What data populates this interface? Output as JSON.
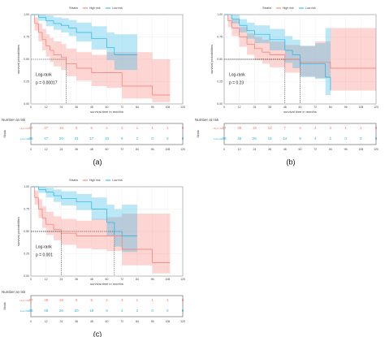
{
  "chart_data": [
    {
      "type": "step",
      "label": "(a)",
      "legend_title": "Strata",
      "ylabel": "survival probabilities",
      "xlabel": "survival time in months",
      "annotations": [
        "Log-rank",
        "p = 0.00017"
      ],
      "risk_title": "Number at risk",
      "risk_ylabel": "Strata",
      "xlim": [
        0,
        120
      ],
      "xticks": [
        0,
        12,
        24,
        36,
        48,
        60,
        72,
        84,
        96,
        108,
        120
      ],
      "ylim": [
        0,
        1
      ],
      "yticks": [
        {
          "value": 0,
          "label": "0.00"
        },
        {
          "value": 0.25,
          "label": "0.25"
        },
        {
          "value": 0.5,
          "label": "0.50"
        },
        {
          "value": 0.75,
          "label": "0.75"
        },
        {
          "value": 1,
          "label": "1.00"
        }
      ],
      "series": [
        {
          "name": "High risk",
          "color": "#f8766d",
          "median": 28,
          "x": [
            0,
            3,
            6,
            9,
            12,
            15,
            18,
            24,
            28,
            36,
            48,
            60,
            72,
            96,
            110
          ],
          "values": [
            1,
            0.9,
            0.8,
            0.72,
            0.65,
            0.6,
            0.55,
            0.52,
            0.45,
            0.4,
            0.35,
            0.35,
            0.2,
            0.1,
            0.1
          ],
          "lower": [
            1,
            0.82,
            0.7,
            0.6,
            0.53,
            0.47,
            0.42,
            0.38,
            0.31,
            0.26,
            0.2,
            0.18,
            0.06,
            0.02,
            0.02
          ],
          "upper": [
            1,
            0.97,
            0.9,
            0.84,
            0.78,
            0.74,
            0.7,
            0.67,
            0.62,
            0.58,
            0.55,
            0.58,
            0.58,
            0.5,
            0.5
          ],
          "at_risk": [
            57,
            37,
            19,
            9,
            6,
            4,
            2,
            1,
            1,
            1,
            0
          ]
        },
        {
          "name": "Low risk",
          "color": "#1fb3e5",
          "x": [
            0,
            6,
            12,
            18,
            24,
            30,
            36,
            48,
            60,
            66,
            84
          ],
          "values": [
            1,
            0.97,
            0.93,
            0.9,
            0.88,
            0.85,
            0.8,
            0.73,
            0.63,
            0.55,
            0.55
          ],
          "lower": [
            1,
            0.93,
            0.87,
            0.83,
            0.8,
            0.76,
            0.7,
            0.61,
            0.49,
            0.38,
            0.38
          ],
          "upper": [
            1,
            1,
            0.99,
            0.97,
            0.96,
            0.94,
            0.91,
            0.87,
            0.8,
            0.78,
            0.78
          ],
          "at_risk": [
            68,
            47,
            26,
            21,
            17,
            10,
            6,
            2,
            0,
            0,
            0
          ]
        }
      ]
    },
    {
      "type": "step",
      "label": "(b)",
      "legend_title": "Strata",
      "ylabel": "survival probabilities",
      "xlabel": "survival time in months",
      "annotations": [
        "Log-rank",
        "p = 0.23"
      ],
      "risk_title": "Number at risk",
      "risk_ylabel": "Strata",
      "xlim": [
        0,
        120
      ],
      "xticks": [
        0,
        12,
        24,
        36,
        48,
        60,
        72,
        84,
        96,
        108,
        120
      ],
      "ylim": [
        0,
        1
      ],
      "yticks": [
        {
          "value": 0,
          "label": "0.00"
        },
        {
          "value": 0.25,
          "label": "0.25"
        },
        {
          "value": 0.5,
          "label": "0.50"
        },
        {
          "value": 0.75,
          "label": "0.75"
        },
        {
          "value": 1,
          "label": "1.00"
        }
      ],
      "series": [
        {
          "name": "High risk",
          "color": "#f8766d",
          "median": 48,
          "x": [
            0,
            3,
            6,
            12,
            18,
            24,
            30,
            36,
            48,
            60,
            72,
            84,
            96,
            120
          ],
          "values": [
            1,
            0.93,
            0.85,
            0.75,
            0.67,
            0.62,
            0.58,
            0.55,
            0.5,
            0.47,
            0.47,
            0.4,
            0.4,
            0.4
          ],
          "lower": [
            1,
            0.86,
            0.76,
            0.64,
            0.55,
            0.49,
            0.45,
            0.41,
            0.35,
            0.31,
            0.29,
            0.15,
            0.15,
            0.15
          ],
          "upper": [
            1,
            0.99,
            0.94,
            0.86,
            0.79,
            0.75,
            0.72,
            0.7,
            0.66,
            0.65,
            0.7,
            0.85,
            0.85,
            0.85
          ],
          "at_risk": [
            57,
            38,
            19,
            10,
            7,
            4,
            4,
            2,
            1,
            1,
            0
          ]
        },
        {
          "name": "Low risk",
          "color": "#1fb3e5",
          "median": 60,
          "x": [
            0,
            6,
            12,
            18,
            24,
            36,
            48,
            54,
            60,
            72,
            80,
            84
          ],
          "values": [
            1,
            0.95,
            0.88,
            0.82,
            0.78,
            0.72,
            0.6,
            0.55,
            0.45,
            0.45,
            0.3,
            0.15
          ],
          "lower": [
            1,
            0.9,
            0.8,
            0.73,
            0.68,
            0.6,
            0.46,
            0.4,
            0.3,
            0.28,
            0.1,
            0.02
          ],
          "upper": [
            1,
            1,
            0.95,
            0.91,
            0.88,
            0.84,
            0.76,
            0.72,
            0.65,
            0.68,
            0.85,
            0.85
          ],
          "at_risk": [
            68,
            46,
            26,
            16,
            14,
            9,
            4,
            1,
            0,
            0,
            0
          ]
        }
      ]
    },
    {
      "type": "step",
      "label": "(c)",
      "legend_title": "Strata",
      "ylabel": "survival probabilities",
      "xlabel": "survival time in months",
      "annotations": [
        "Log-rank",
        "p = 0.001"
      ],
      "risk_title": "Number at risk",
      "risk_ylabel": "Strata",
      "xlim": [
        0,
        120
      ],
      "xticks": [
        0,
        12,
        24,
        36,
        48,
        60,
        72,
        84,
        96,
        108,
        120
      ],
      "ylim": [
        0,
        1
      ],
      "yticks": [
        {
          "value": 0,
          "label": "0.00"
        },
        {
          "value": 0.25,
          "label": "0.25"
        },
        {
          "value": 0.5,
          "label": "0.50"
        },
        {
          "value": 0.75,
          "label": "0.75"
        },
        {
          "value": 1,
          "label": "1.00"
        }
      ],
      "series": [
        {
          "name": "High risk",
          "color": "#f8766d",
          "median": 24,
          "x": [
            0,
            3,
            6,
            9,
            12,
            18,
            24,
            36,
            48,
            60,
            72,
            96,
            110
          ],
          "values": [
            1,
            0.88,
            0.75,
            0.65,
            0.58,
            0.52,
            0.48,
            0.45,
            0.45,
            0.45,
            0.3,
            0.15,
            0.15
          ],
          "lower": [
            1,
            0.8,
            0.65,
            0.54,
            0.46,
            0.4,
            0.35,
            0.31,
            0.3,
            0.28,
            0.12,
            0.03,
            0.03
          ],
          "upper": [
            1,
            0.96,
            0.86,
            0.78,
            0.72,
            0.67,
            0.64,
            0.62,
            0.64,
            0.66,
            0.7,
            0.7,
            0.7
          ],
          "at_risk": [
            57,
            36,
            19,
            9,
            5,
            4,
            3,
            1,
            1,
            1,
            0
          ]
        },
        {
          "name": "Low risk",
          "color": "#1fb3e5",
          "median": 66,
          "x": [
            0,
            6,
            12,
            18,
            24,
            36,
            48,
            60,
            66,
            72,
            84
          ],
          "values": [
            1,
            0.97,
            0.94,
            0.9,
            0.87,
            0.83,
            0.75,
            0.6,
            0.5,
            0.45,
            0.45
          ],
          "lower": [
            1,
            0.93,
            0.88,
            0.83,
            0.79,
            0.74,
            0.63,
            0.45,
            0.33,
            0.27,
            0.27
          ],
          "upper": [
            1,
            1,
            0.99,
            0.97,
            0.95,
            0.92,
            0.88,
            0.8,
            0.75,
            0.8,
            0.8
          ],
          "at_risk": [
            68,
            48,
            26,
            20,
            18,
            9,
            4,
            2,
            0,
            0,
            0
          ]
        }
      ]
    }
  ]
}
